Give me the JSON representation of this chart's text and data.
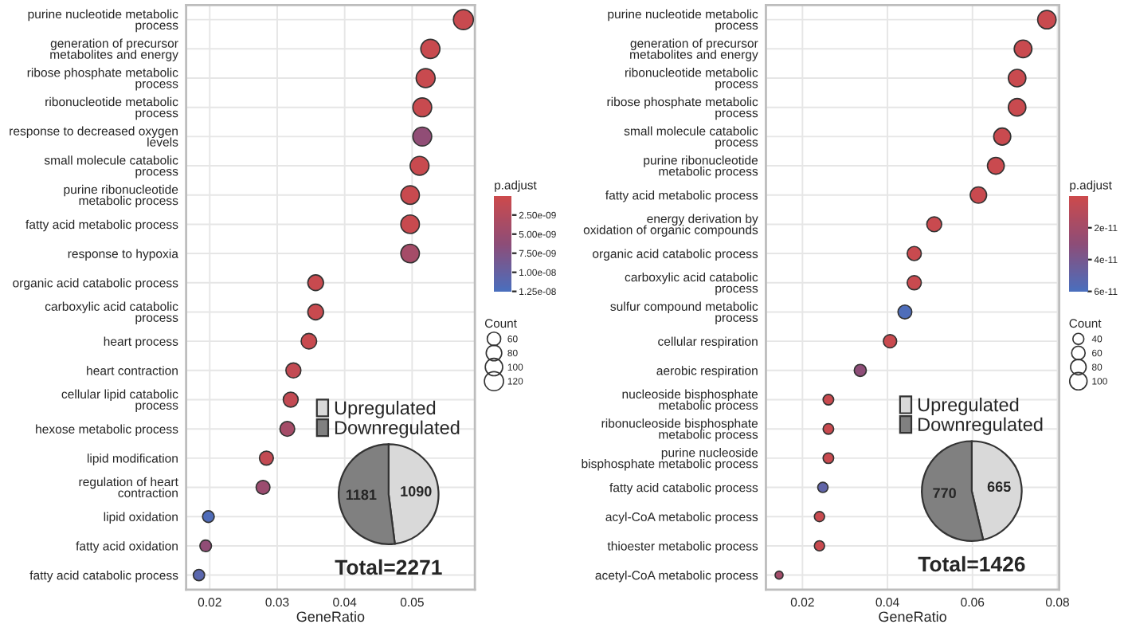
{
  "chart_data": [
    {
      "type": "scatter",
      "orientation": "horizontal",
      "xlabel": "GeneRatio",
      "clabel": "p.adjust",
      "legend_title": "Count",
      "grid": true,
      "marker": "circle",
      "categories": [
        "purine nucleotide metabolic\nprocess",
        "generation of precursor\nmetabolites and energy",
        "ribose phosphate metabolic\nprocess",
        "ribonucleotide metabolic\nprocess",
        "response to decreased oxygen\nlevels",
        "small molecule catabolic\nprocess",
        "purine ribonucleotide\nmetabolic process",
        "fatty acid metabolic process",
        "response to hypoxia",
        "organic acid catabolic process",
        "carboxylic acid catabolic\nprocess",
        "heart process",
        "heart contraction",
        "cellular lipid catabolic\nprocess",
        "hexose metabolic process",
        "lipid modification",
        "regulation of heart\ncontraction",
        "lipid oxidation",
        "fatty acid oxidation",
        "fatty acid catabolic process"
      ],
      "values": [
        0.0576,
        0.0527,
        0.052,
        0.0515,
        0.0515,
        0.0511,
        0.0497,
        0.0497,
        0.0497,
        0.0357,
        0.0357,
        0.0347,
        0.0324,
        0.032,
        0.0315,
        0.0284,
        0.0279,
        0.0198,
        0.0194,
        0.0184
      ],
      "sizes": [
        131,
        120,
        118,
        117,
        117,
        116,
        113,
        113,
        113,
        81,
        81,
        79,
        74,
        73,
        72,
        64,
        63,
        45,
        44,
        42
      ],
      "size_legend": [
        60,
        80,
        100,
        120
      ],
      "cvalues": [
        5e-10,
        5e-10,
        5e-10,
        5e-10,
        6e-09,
        5e-10,
        5e-10,
        5e-10,
        4e-09,
        5e-10,
        5e-10,
        5e-10,
        1e-09,
        1e-09,
        4e-09,
        1e-09,
        5e-09,
        1.2e-08,
        6e-09,
        1.1e-08
      ],
      "clim": [
        1.25e-08,
        0
      ],
      "cticks": [
        {
          "value": 2.5e-09,
          "label": "2.50e-09"
        },
        {
          "value": 5e-09,
          "label": "5.00e-09"
        },
        {
          "value": 7.5e-09,
          "label": "7.50e-09"
        },
        {
          "value": 1e-08,
          "label": "1.00e-08"
        },
        {
          "value": 1.25e-08,
          "label": "1.25e-08"
        }
      ],
      "xlim": [
        0.0165,
        0.0593
      ],
      "xticks": [
        0.02,
        0.03,
        0.04,
        0.05
      ]
    },
    {
      "type": "pie",
      "categories": [
        "Upregulated",
        "Downregulated"
      ],
      "values": [
        1090,
        1181
      ],
      "colors": [
        "#d9d9d9",
        "#808080"
      ],
      "data_labels": true,
      "legend": "top",
      "annotations": [
        "Total=2271"
      ]
    },
    {
      "type": "scatter",
      "orientation": "horizontal",
      "xlabel": "GeneRatio",
      "clabel": "p.adjust",
      "legend_title": "Count",
      "grid": true,
      "marker": "circle",
      "categories": [
        "purine nucleotide metabolic\nprocess",
        "generation of precursor\nmetabolites and energy",
        "ribonucleotide metabolic\nprocess",
        "ribose phosphate metabolic\nprocess",
        "small molecule catabolic\nprocess",
        "purine ribonucleotide\nmetabolic process",
        "fatty acid metabolic process",
        "energy derivation by\noxidation of organic compounds",
        "organic acid catabolic process",
        "carboxylic acid catabolic\nprocess",
        "sulfur compound metabolic\nprocess",
        "cellular respiration",
        "aerobic respiration",
        "nucleoside bisphosphate\nmetabolic process",
        "ribonucleoside bisphosphate\nmetabolic process",
        "purine nucleoside\nbisphosphate metabolic process",
        "fatty acid catabolic process",
        "acyl-CoA metabolic process",
        "thioester metabolic process",
        "acetyl-CoA metabolic process"
      ],
      "values": [
        0.0775,
        0.0719,
        0.0705,
        0.0705,
        0.067,
        0.0655,
        0.0614,
        0.051,
        0.0463,
        0.0463,
        0.0441,
        0.0406,
        0.0336,
        0.0261,
        0.0261,
        0.0261,
        0.0248,
        0.024,
        0.024,
        0.0145
      ],
      "sizes": [
        111,
        103,
        101,
        101,
        96,
        93,
        88,
        73,
        66,
        66,
        63,
        58,
        48,
        37,
        37,
        37,
        35,
        34,
        34,
        21
      ],
      "size_legend": [
        40,
        60,
        80,
        100
      ],
      "cvalues": [
        2e-12,
        2e-12,
        2e-12,
        2e-12,
        2e-12,
        2e-12,
        2e-12,
        2e-12,
        2e-12,
        2e-12,
        5.8e-11,
        2e-12,
        3e-11,
        2e-12,
        2e-12,
        2e-12,
        5e-11,
        2e-12,
        2e-12,
        2e-11
      ],
      "clim": [
        6e-11,
        0
      ],
      "cticks": [
        {
          "value": 2e-11,
          "label": "2e-11"
        },
        {
          "value": 4e-11,
          "label": "4e-11"
        },
        {
          "value": 6e-11,
          "label": "6e-11"
        }
      ],
      "xlim": [
        0.0114,
        0.0804
      ],
      "xticks": [
        0.02,
        0.04,
        0.06,
        0.08
      ]
    },
    {
      "type": "pie",
      "categories": [
        "Upregulated",
        "Downregulated"
      ],
      "values": [
        665,
        770
      ],
      "colors": [
        "#d9d9d9",
        "#808080"
      ],
      "data_labels": true,
      "legend": "top",
      "annotations": [
        "Total=1426"
      ]
    }
  ]
}
